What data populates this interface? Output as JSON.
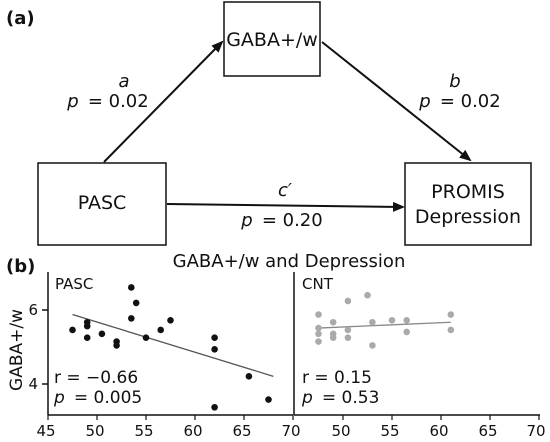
{
  "panel_a": {
    "label": "(a)",
    "nodes": {
      "mediator": "GABA+/w",
      "predictor": "PASC",
      "outcome_line1": "PROMIS",
      "outcome_line2": "Depression"
    },
    "paths": {
      "a": {
        "name": "a",
        "p_label": "p",
        "p_value": "= 0.02"
      },
      "b": {
        "name": "b",
        "p_label": "p",
        "p_value": "= 0.02"
      },
      "c_prime": {
        "name": "c′",
        "p_label": "p",
        "p_value": "= 0.20"
      }
    }
  },
  "panel_b": {
    "label": "(b)",
    "title": "GABA+/w and Depression",
    "ylabel": "GABA+/w",
    "y_ticks": [
      "6",
      "4"
    ],
    "x_ticks": [
      "45",
      "50",
      "55",
      "60",
      "65",
      "70"
    ]
  },
  "colors": {
    "pasc_points": "#111111",
    "cnt_points": "#aaaaaa",
    "pasc_fit": "#555555",
    "cnt_fit": "#888888"
  },
  "chart_data": [
    {
      "type": "scatter",
      "subtitle": "PASC",
      "xlim": [
        45,
        70
      ],
      "ylim": [
        3.3,
        7.0
      ],
      "points": [
        [
          47.5,
          5.5
        ],
        [
          49,
          5.6
        ],
        [
          49,
          5.7
        ],
        [
          49,
          5.3
        ],
        [
          50.5,
          5.4
        ],
        [
          52,
          5.2
        ],
        [
          52,
          5.1
        ],
        [
          53.5,
          6.6
        ],
        [
          53.5,
          5.8
        ],
        [
          54,
          6.2
        ],
        [
          55,
          5.3
        ],
        [
          56.5,
          5.5
        ],
        [
          57.5,
          5.75
        ],
        [
          62,
          5.3
        ],
        [
          62,
          5.0
        ],
        [
          62,
          3.5
        ],
        [
          65.5,
          4.3
        ],
        [
          67.5,
          3.7
        ]
      ],
      "fit": [
        [
          47.5,
          5.9
        ],
        [
          68,
          4.3
        ]
      ],
      "stats": {
        "r": "r = −0.66",
        "p_label": "p",
        "p_value": "= 0.005"
      }
    },
    {
      "type": "scatter",
      "subtitle": "CNT",
      "xlim": [
        45,
        70
      ],
      "ylim": [
        3.3,
        7.0
      ],
      "points": [
        [
          47.5,
          5.9
        ],
        [
          47.5,
          5.55
        ],
        [
          47.5,
          5.4
        ],
        [
          47.5,
          5.2
        ],
        [
          49,
          5.7
        ],
        [
          49,
          5.4
        ],
        [
          49,
          5.3
        ],
        [
          50.5,
          6.25
        ],
        [
          50.5,
          5.5
        ],
        [
          50.5,
          5.3
        ],
        [
          52.5,
          6.4
        ],
        [
          53,
          5.7
        ],
        [
          53,
          5.1
        ],
        [
          55,
          5.75
        ],
        [
          56.5,
          5.75
        ],
        [
          56.5,
          5.45
        ],
        [
          61,
          5.9
        ],
        [
          61,
          5.5
        ]
      ],
      "fit": [
        [
          47.5,
          5.55
        ],
        [
          61,
          5.7
        ]
      ],
      "stats": {
        "r": "r = 0.15",
        "p_label": "p",
        "p_value": "= 0.53"
      }
    }
  ]
}
